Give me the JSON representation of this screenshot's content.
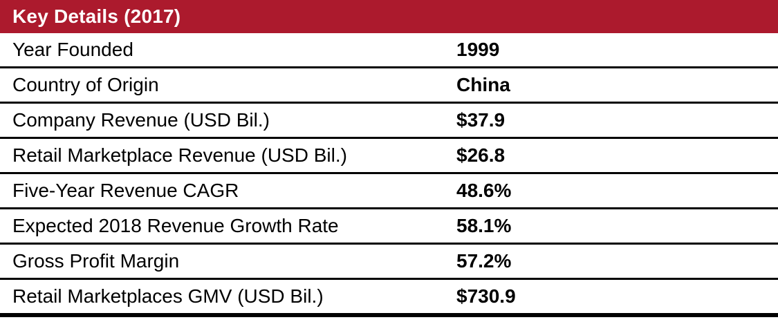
{
  "table": {
    "title": "Key Details (2017)",
    "rows": [
      {
        "label": "Year Founded",
        "value": "1999"
      },
      {
        "label": "Country of Origin",
        "value": "China"
      },
      {
        "label": "Company Revenue (USD Bil.)",
        "value": "$37.9"
      },
      {
        "label": "Retail Marketplace Revenue (USD Bil.)",
        "value": "$26.8"
      },
      {
        "label": "Five-Year Revenue CAGR",
        "value": "48.6%"
      },
      {
        "label": "Expected 2018 Revenue Growth Rate",
        "value": "58.1%"
      },
      {
        "label": "Gross Profit Margin",
        "value": "57.2%"
      },
      {
        "label": "Retail Marketplaces GMV (USD Bil.)",
        "value": "$730.9"
      }
    ],
    "colors": {
      "header_bg": "#AC1A2D",
      "header_text": "#FFFFFF",
      "row_text": "#000000",
      "divider": "#000000"
    }
  }
}
